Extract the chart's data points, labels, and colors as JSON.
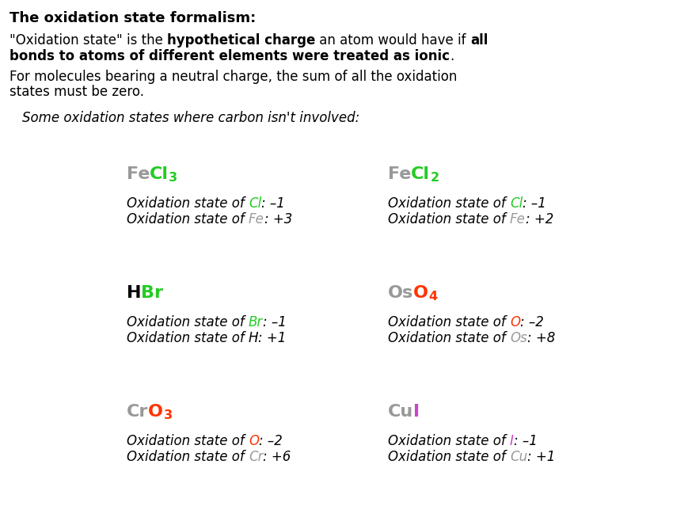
{
  "bg_color": "#ffffff",
  "fig_width": 8.7,
  "fig_height": 6.44,
  "dpi": 100,
  "compounds": [
    {
      "col": 0,
      "row": 0,
      "formula_parts": [
        {
          "text": "Fe",
          "color": "#999999",
          "sub": false
        },
        {
          "text": "Cl",
          "color": "#22cc22",
          "sub": false
        },
        {
          "text": "3",
          "color": "#22cc22",
          "sub": true
        }
      ],
      "states": [
        {
          "prefix": "Oxidation state of ",
          "element": "Cl",
          "elem_color": "#22cc22",
          "suffix": ": –1"
        },
        {
          "prefix": "Oxidation state of ",
          "element": "Fe",
          "elem_color": "#999999",
          "suffix": ": +3"
        }
      ]
    },
    {
      "col": 1,
      "row": 0,
      "formula_parts": [
        {
          "text": "Fe",
          "color": "#999999",
          "sub": false
        },
        {
          "text": "Cl",
          "color": "#22cc22",
          "sub": false
        },
        {
          "text": "2",
          "color": "#22cc22",
          "sub": true
        }
      ],
      "states": [
        {
          "prefix": "Oxidation state of ",
          "element": "Cl",
          "elem_color": "#22cc22",
          "suffix": ": –1"
        },
        {
          "prefix": "Oxidation state of ",
          "element": "Fe",
          "elem_color": "#999999",
          "suffix": ": +2"
        }
      ]
    },
    {
      "col": 0,
      "row": 1,
      "formula_parts": [
        {
          "text": "H",
          "color": "#000000",
          "sub": false
        },
        {
          "text": "Br",
          "color": "#22cc22",
          "sub": false
        }
      ],
      "states": [
        {
          "prefix": "Oxidation state of ",
          "element": "Br",
          "elem_color": "#22cc22",
          "suffix": ": –1"
        },
        {
          "prefix": "Oxidation state of ",
          "element": "H",
          "elem_color": "#000000",
          "suffix": ": +1"
        }
      ]
    },
    {
      "col": 1,
      "row": 1,
      "formula_parts": [
        {
          "text": "Os",
          "color": "#999999",
          "sub": false
        },
        {
          "text": "O",
          "color": "#ff3300",
          "sub": false
        },
        {
          "text": "4",
          "color": "#ff3300",
          "sub": true
        }
      ],
      "states": [
        {
          "prefix": "Oxidation state of ",
          "element": "O",
          "elem_color": "#ff3300",
          "suffix": ": –2"
        },
        {
          "prefix": "Oxidation state of ",
          "element": "Os",
          "elem_color": "#999999",
          "suffix": ": +8"
        }
      ]
    },
    {
      "col": 0,
      "row": 2,
      "formula_parts": [
        {
          "text": "Cr",
          "color": "#999999",
          "sub": false
        },
        {
          "text": "O",
          "color": "#ff3300",
          "sub": false
        },
        {
          "text": "3",
          "color": "#ff3300",
          "sub": true
        }
      ],
      "states": [
        {
          "prefix": "Oxidation state of ",
          "element": "O",
          "elem_color": "#ff3300",
          "suffix": ": –2"
        },
        {
          "prefix": "Oxidation state of ",
          "element": "Cr",
          "elem_color": "#999999",
          "suffix": ": +6"
        }
      ]
    },
    {
      "col": 1,
      "row": 2,
      "formula_parts": [
        {
          "text": "Cu",
          "color": "#999999",
          "sub": false
        },
        {
          "text": "I",
          "color": "#cc44cc",
          "sub": false
        }
      ],
      "states": [
        {
          "prefix": "Oxidation state of ",
          "element": "I",
          "elem_color": "#cc44cc",
          "suffix": ": –1"
        },
        {
          "prefix": "Oxidation state of ",
          "element": "Cu",
          "elem_color": "#999999",
          "suffix": ": +1"
        }
      ]
    }
  ]
}
